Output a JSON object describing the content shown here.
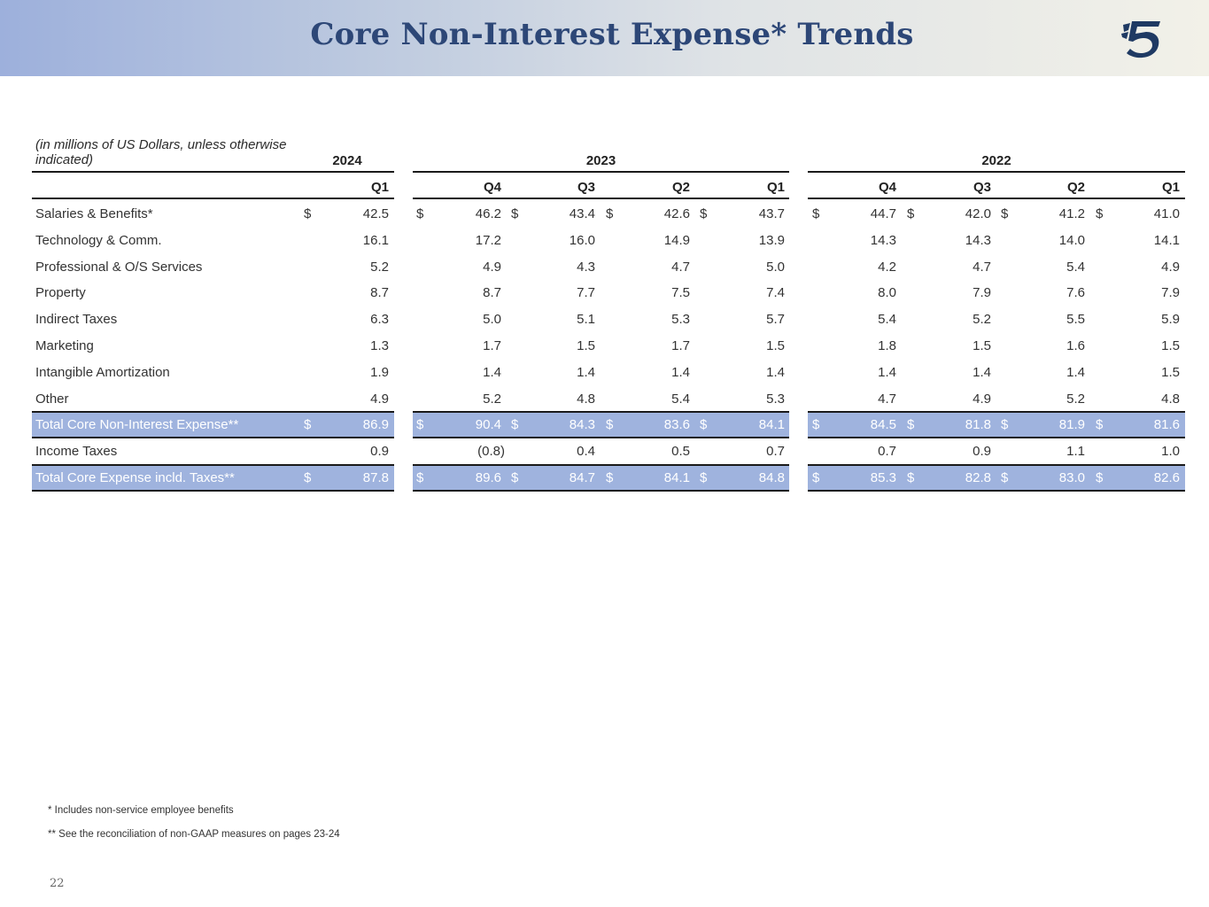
{
  "header": {
    "title": "Core Non-Interest Expense* Trends",
    "gradient_start": "#9db0dc",
    "gradient_end": "#f2f1e8",
    "title_color": "#2d4777",
    "logo_icon": "griffin-logo-icon"
  },
  "table": {
    "units_note": "(in millions of US Dollars, unless otherwise indicated)",
    "years": [
      "2024",
      "2023",
      "2022"
    ],
    "quarters": [
      "Q1",
      "Q4",
      "Q3",
      "Q2",
      "Q1",
      "Q4",
      "Q3",
      "Q2",
      "Q1"
    ],
    "currency_symbol": "$",
    "total_band_color": "#9fb3de",
    "rows": [
      {
        "label": "Salaries & Benefits*",
        "dollar": true,
        "total": false,
        "values": [
          "42.5",
          "46.2",
          "43.4",
          "42.6",
          "43.7",
          "44.7",
          "42.0",
          "41.2",
          "41.0"
        ]
      },
      {
        "label": "Technology & Comm.",
        "dollar": false,
        "total": false,
        "values": [
          "16.1",
          "17.2",
          "16.0",
          "14.9",
          "13.9",
          "14.3",
          "14.3",
          "14.0",
          "14.1"
        ]
      },
      {
        "label": "Professional & O/S Services",
        "dollar": false,
        "total": false,
        "values": [
          "5.2",
          "4.9",
          "4.3",
          "4.7",
          "5.0",
          "4.2",
          "4.7",
          "5.4",
          "4.9"
        ]
      },
      {
        "label": "Property",
        "dollar": false,
        "total": false,
        "values": [
          "8.7",
          "8.7",
          "7.7",
          "7.5",
          "7.4",
          "8.0",
          "7.9",
          "7.6",
          "7.9"
        ]
      },
      {
        "label": "Indirect Taxes",
        "dollar": false,
        "total": false,
        "values": [
          "6.3",
          "5.0",
          "5.1",
          "5.3",
          "5.7",
          "5.4",
          "5.2",
          "5.5",
          "5.9"
        ]
      },
      {
        "label": "Marketing",
        "dollar": false,
        "total": false,
        "values": [
          "1.3",
          "1.7",
          "1.5",
          "1.7",
          "1.5",
          "1.8",
          "1.5",
          "1.6",
          "1.5"
        ]
      },
      {
        "label": "Intangible Amortization",
        "dollar": false,
        "total": false,
        "values": [
          "1.9",
          "1.4",
          "1.4",
          "1.4",
          "1.4",
          "1.4",
          "1.4",
          "1.4",
          "1.5"
        ]
      },
      {
        "label": "Other",
        "dollar": false,
        "total": false,
        "values": [
          "4.9",
          "5.2",
          "4.8",
          "5.4",
          "5.3",
          "4.7",
          "4.9",
          "5.2",
          "4.8"
        ]
      },
      {
        "label": "Total Core Non-Interest Expense**",
        "dollar": true,
        "total": true,
        "values": [
          "86.9",
          "90.4",
          "84.3",
          "83.6",
          "84.1",
          "84.5",
          "81.8",
          "81.9",
          "81.6"
        ]
      },
      {
        "label": "Income Taxes",
        "dollar": false,
        "total": false,
        "values": [
          "0.9",
          "(0.8)",
          "0.4",
          "0.5",
          "0.7",
          "0.7",
          "0.9",
          "1.1",
          "1.0"
        ]
      },
      {
        "label": "Total Core Expense incld. Taxes**",
        "dollar": true,
        "total": true,
        "values": [
          "87.8",
          "89.6",
          "84.7",
          "84.1",
          "84.8",
          "85.3",
          "82.8",
          "83.0",
          "82.6"
        ]
      }
    ]
  },
  "footnotes": {
    "note1": "* Includes non-service employee benefits",
    "note2": "** See the reconciliation of non-GAAP measures on pages 23-24"
  },
  "page_number": "22"
}
